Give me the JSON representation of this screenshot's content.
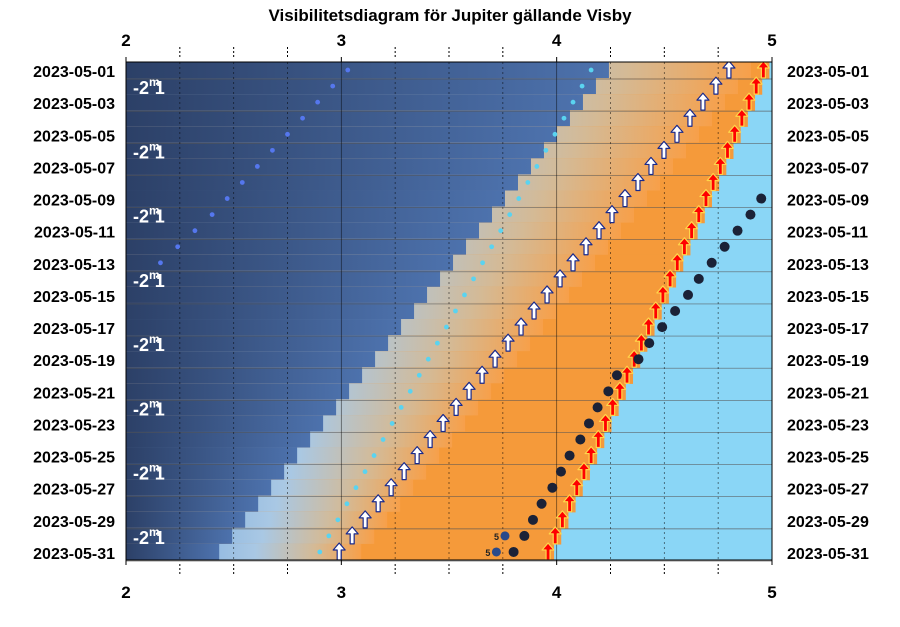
{
  "chart_data": {
    "type": "scatter",
    "title": "Visibilitetsdiagram för Jupiter gällande Visby",
    "xlabel": "",
    "ylabel": "",
    "xlim": [
      2,
      5
    ],
    "x_ticks": [
      "2",
      "3",
      "4",
      "5"
    ],
    "x_minor_ticks": [
      2.25,
      2.5,
      2.75,
      3.25,
      3.5,
      3.75,
      4.25,
      4.5,
      4.75
    ],
    "y_labels": [
      "2023-05-01",
      "2023-05-03",
      "2023-05-05",
      "2023-05-07",
      "2023-05-09",
      "2023-05-11",
      "2023-05-13",
      "2023-05-15",
      "2023-05-17",
      "2023-05-19",
      "2023-05-21",
      "2023-05-23",
      "2023-05-25",
      "2023-05-27",
      "2023-05-29",
      "2023-05-31"
    ],
    "magnitude_label": {
      "base": "-2",
      "sup": "m",
      "tail": "1"
    },
    "magnitude_rows": [
      "2023-05-01",
      "2023-05-05",
      "2023-05-09",
      "2023-05-13",
      "2023-05-17",
      "2023-05-21",
      "2023-05-25",
      "2023-05-29"
    ],
    "jupiter_rise": {
      "dates": [
        "2023-05-20",
        "2023-05-21",
        "2023-05-22",
        "2023-05-23",
        "2023-05-24",
        "2023-05-25",
        "2023-05-26",
        "2023-05-27",
        "2023-05-28",
        "2023-05-29",
        "2023-05-30",
        "2023-05-31"
      ],
      "times": [
        4.28,
        4.24,
        4.19,
        4.15,
        4.11,
        4.06,
        4.02,
        3.98,
        3.93,
        3.89,
        3.85,
        3.8
      ]
    },
    "jupiter_rise_altitude_5": {
      "label": "5",
      "dates": [
        "2023-05-30",
        "2023-05-31"
      ],
      "times": [
        3.76,
        3.72
      ]
    },
    "jupiter_position": {
      "dates": [
        "2023-05-09",
        "2023-05-10",
        "2023-05-11",
        "2023-05-12",
        "2023-05-13",
        "2023-05-14",
        "2023-05-15",
        "2023-05-16",
        "2023-05-17",
        "2023-05-18",
        "2023-05-19"
      ],
      "times": [
        4.95,
        4.9,
        4.84,
        4.78,
        4.72,
        4.66,
        4.61,
        4.55,
        4.49,
        4.43,
        4.38
      ]
    },
    "sunrise_arrows": {
      "start_date": "2023-05-01",
      "end_date": "2023-05-31",
      "time_start": 4.96,
      "time_end": 3.96
    },
    "civil_dawn_arrows": {
      "start_date": "2023-05-01",
      "end_date": "2023-05-31",
      "time_start": 4.8,
      "time_end": 2.99
    },
    "nautical_dawn_dots": {
      "start_date": "2023-05-01",
      "end_date": "2023-05-31",
      "time_start": 4.16,
      "time_end": 2.9
    },
    "astronomical_dawn_dots": {
      "dates": [
        "2023-05-01",
        "2023-05-02",
        "2023-05-03",
        "2023-05-04",
        "2023-05-05",
        "2023-05-06",
        "2023-05-07",
        "2023-05-08",
        "2023-05-09",
        "2023-05-10",
        "2023-05-11",
        "2023-05-12",
        "2023-05-13"
      ],
      "times": [
        3.03,
        2.96,
        2.89,
        2.82,
        2.75,
        2.68,
        2.61,
        2.54,
        2.47,
        2.4,
        2.32,
        2.24,
        2.16
      ]
    },
    "colors": {
      "night": "#2c4067",
      "blue_mid": "#4d73b0",
      "blue_light": "#8fbbe4",
      "orange": "#f59a3a",
      "day": "#8ad6f6",
      "sunrise_arrow": "#ff0000",
      "dawn_arrow": "#ffffff",
      "jupiter_dot": "#1b2237",
      "nautical_dot": "#5ad3f0",
      "astronomical_dot": "#5577ee"
    },
    "grid": true
  }
}
